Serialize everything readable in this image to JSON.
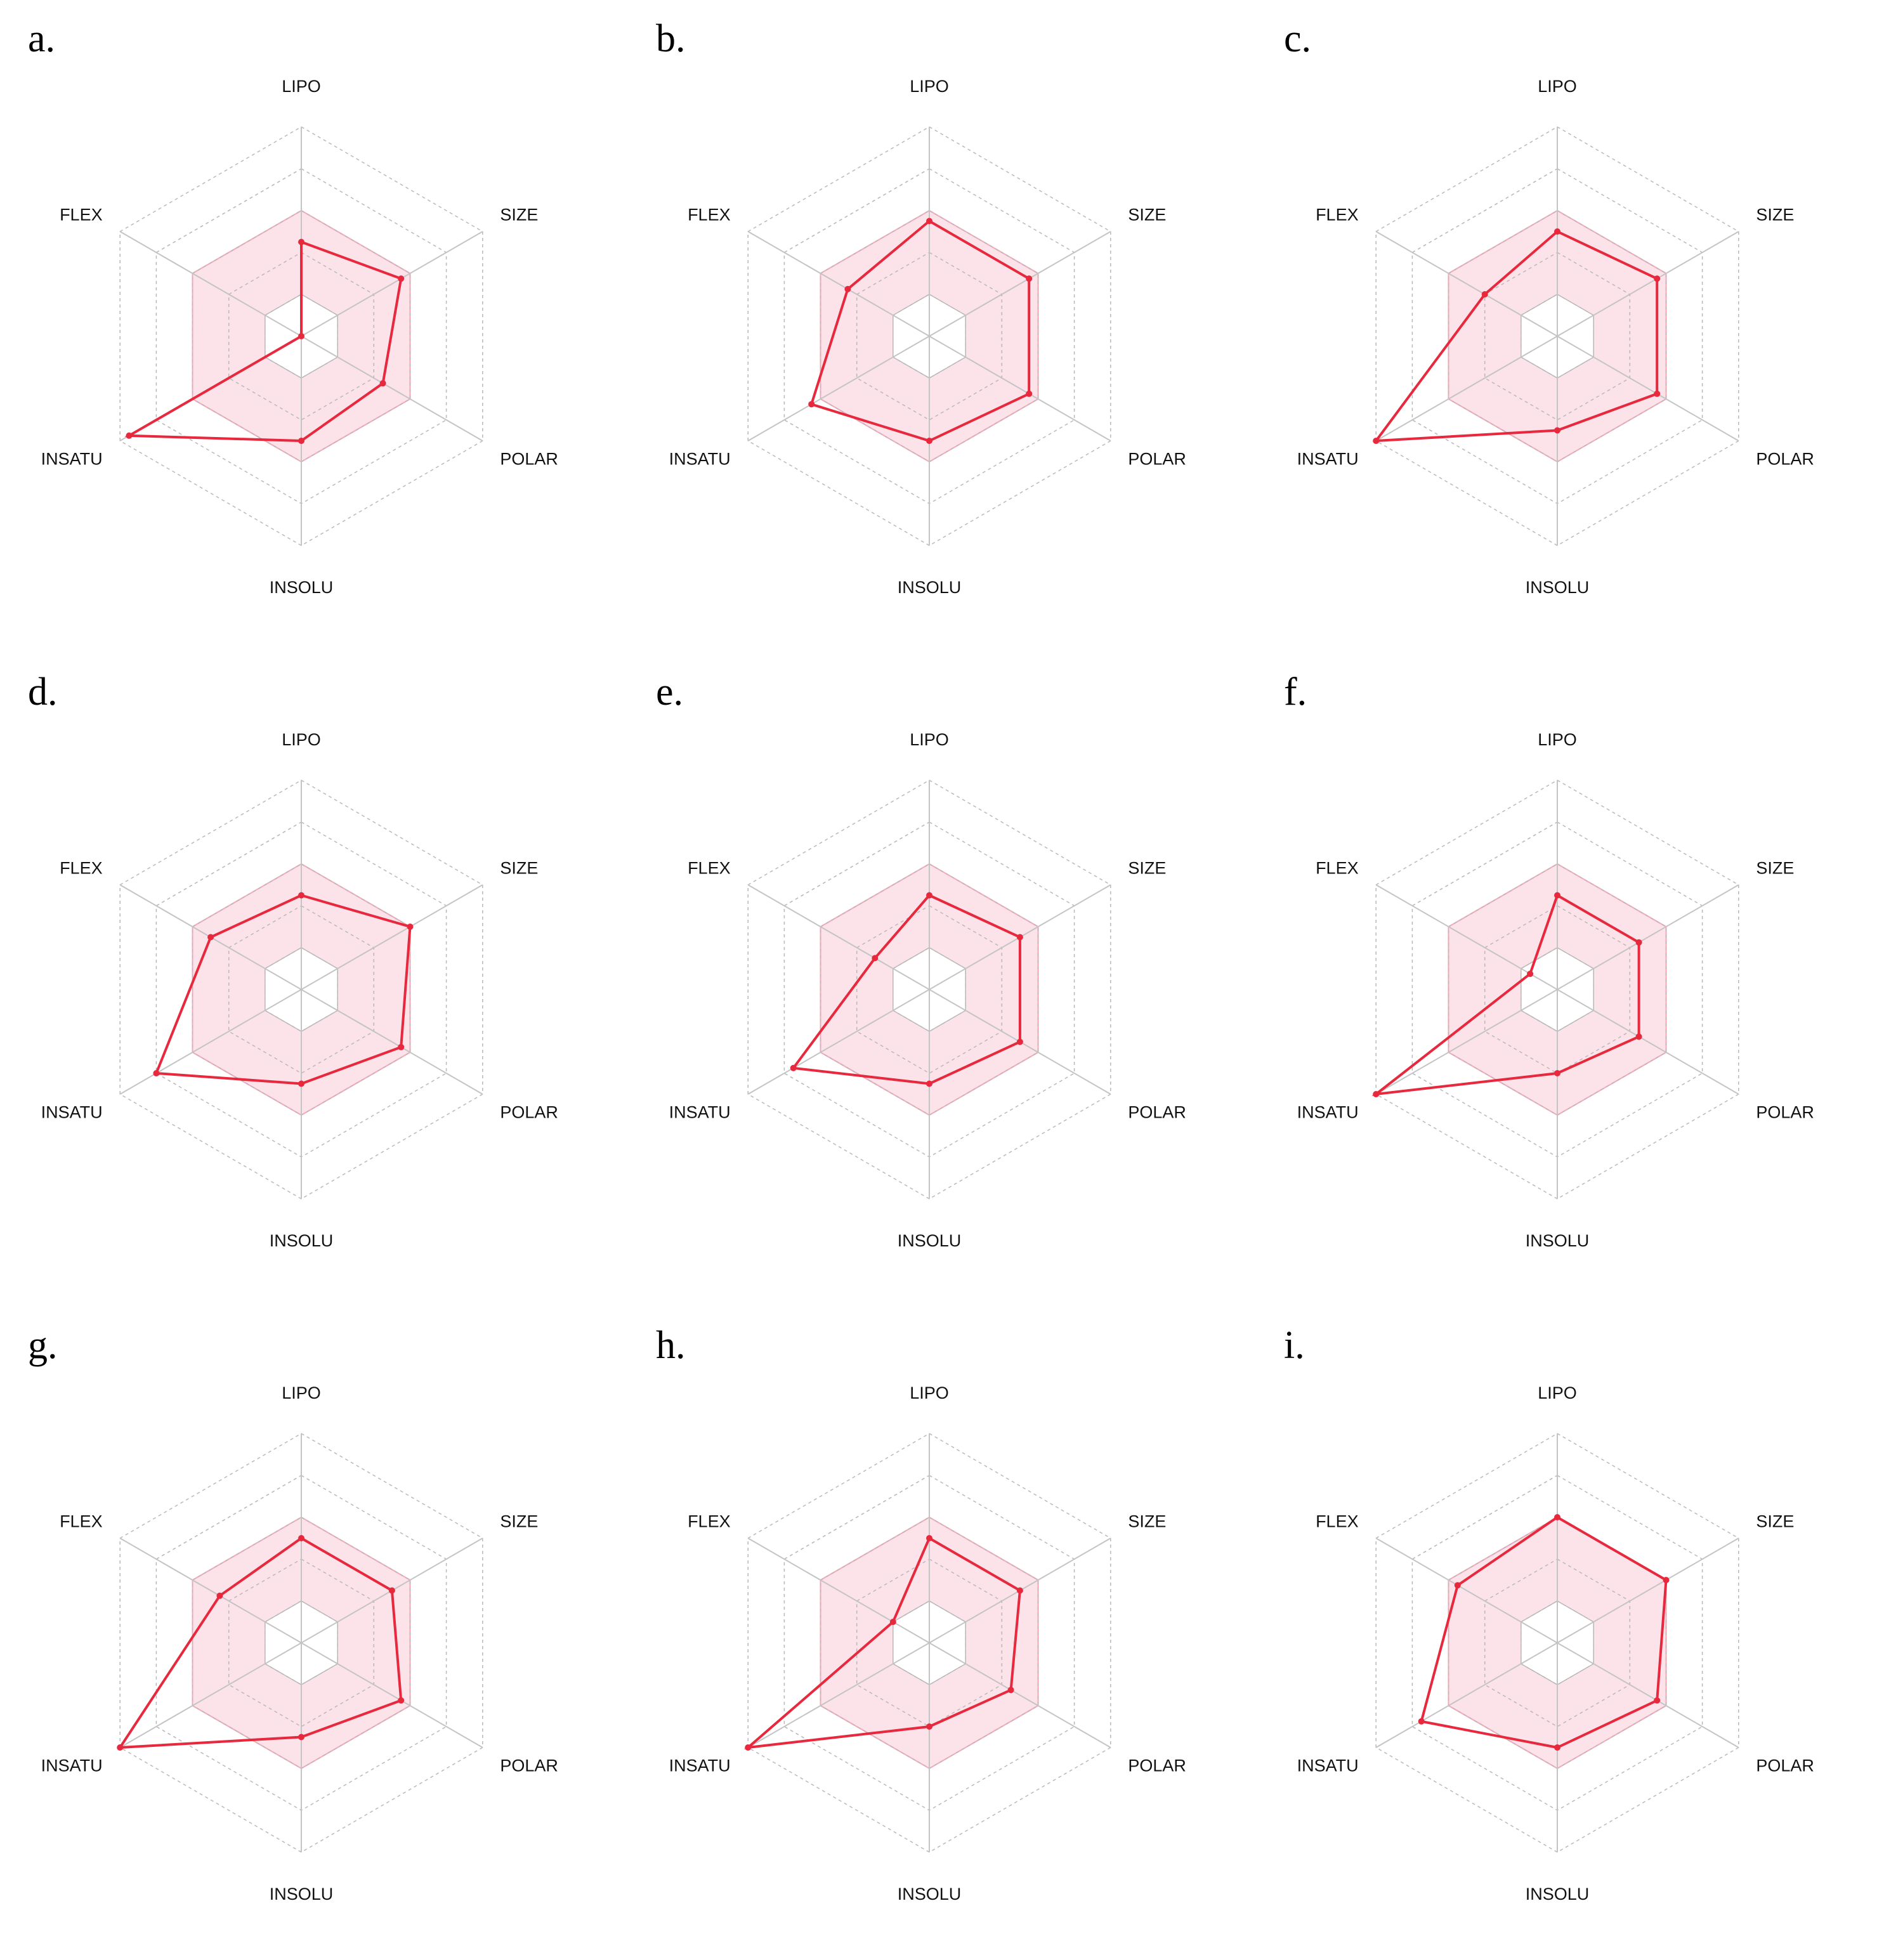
{
  "colors": {
    "line": "#e8283c",
    "band_fill": "#fbd9e3",
    "band_stroke": "#f6a8bb",
    "grid": "#b8b8b8",
    "axis": "#c4c4c4"
  },
  "chart_data": [
    {
      "type": "radar",
      "panel_label": "a.",
      "axes": [
        "LIPO",
        "SIZE",
        "POLAR",
        "INSOLU",
        "INSATU",
        "FLEX"
      ],
      "range": [
        0,
        1
      ],
      "optimal_band": [
        0.2,
        0.6
      ],
      "values": [
        0.45,
        0.55,
        0.45,
        0.5,
        0.95,
        0.0
      ]
    },
    {
      "type": "radar",
      "panel_label": "b.",
      "axes": [
        "LIPO",
        "SIZE",
        "POLAR",
        "INSOLU",
        "INSATU",
        "FLEX"
      ],
      "range": [
        0,
        1
      ],
      "optimal_band": [
        0.2,
        0.6
      ],
      "values": [
        0.55,
        0.55,
        0.55,
        0.5,
        0.65,
        0.45
      ]
    },
    {
      "type": "radar",
      "panel_label": "c.",
      "axes": [
        "LIPO",
        "SIZE",
        "POLAR",
        "INSOLU",
        "INSATU",
        "FLEX"
      ],
      "range": [
        0,
        1
      ],
      "optimal_band": [
        0.2,
        0.6
      ],
      "values": [
        0.5,
        0.55,
        0.55,
        0.45,
        1.0,
        0.4
      ]
    },
    {
      "type": "radar",
      "panel_label": "d.",
      "axes": [
        "LIPO",
        "SIZE",
        "POLAR",
        "INSOLU",
        "INSATU",
        "FLEX"
      ],
      "range": [
        0,
        1
      ],
      "optimal_band": [
        0.2,
        0.6
      ],
      "values": [
        0.45,
        0.6,
        0.55,
        0.45,
        0.8,
        0.5
      ]
    },
    {
      "type": "radar",
      "panel_label": "e.",
      "axes": [
        "LIPO",
        "SIZE",
        "POLAR",
        "INSOLU",
        "INSATU",
        "FLEX"
      ],
      "range": [
        0,
        1
      ],
      "optimal_band": [
        0.2,
        0.6
      ],
      "values": [
        0.45,
        0.5,
        0.5,
        0.45,
        0.75,
        0.3
      ]
    },
    {
      "type": "radar",
      "panel_label": "f.",
      "axes": [
        "LIPO",
        "SIZE",
        "POLAR",
        "INSOLU",
        "INSATU",
        "FLEX"
      ],
      "range": [
        0,
        1
      ],
      "optimal_band": [
        0.2,
        0.6
      ],
      "values": [
        0.45,
        0.45,
        0.45,
        0.4,
        1.0,
        0.15
      ]
    },
    {
      "type": "radar",
      "panel_label": "g.",
      "axes": [
        "LIPO",
        "SIZE",
        "POLAR",
        "INSOLU",
        "INSATU",
        "FLEX"
      ],
      "range": [
        0,
        1
      ],
      "optimal_band": [
        0.2,
        0.6
      ],
      "values": [
        0.5,
        0.5,
        0.55,
        0.45,
        1.0,
        0.45
      ]
    },
    {
      "type": "radar",
      "panel_label": "h.",
      "axes": [
        "LIPO",
        "SIZE",
        "POLAR",
        "INSOLU",
        "INSATU",
        "FLEX"
      ],
      "range": [
        0,
        1
      ],
      "optimal_band": [
        0.2,
        0.6
      ],
      "values": [
        0.5,
        0.5,
        0.45,
        0.4,
        1.0,
        0.2
      ]
    },
    {
      "type": "radar",
      "panel_label": "i.",
      "axes": [
        "LIPO",
        "SIZE",
        "POLAR",
        "INSOLU",
        "INSATU",
        "FLEX"
      ],
      "range": [
        0,
        1
      ],
      "optimal_band": [
        0.2,
        0.6
      ],
      "values": [
        0.6,
        0.6,
        0.55,
        0.5,
        0.75,
        0.55
      ]
    }
  ]
}
